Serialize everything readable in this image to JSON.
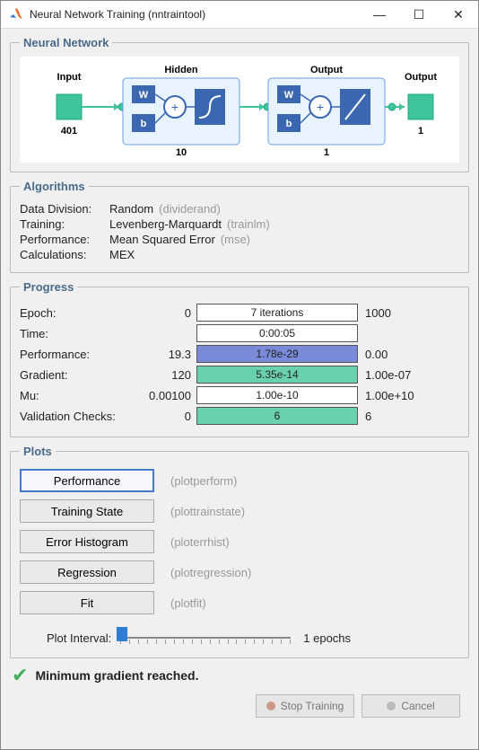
{
  "window": {
    "title": "Neural Network Training (nntraintool)"
  },
  "sections": {
    "network": "Neural Network",
    "algorithms": "Algorithms",
    "progress": "Progress",
    "plots": "Plots"
  },
  "diagram": {
    "input_label": "Input",
    "input_size": "401",
    "hidden_label": "Hidden",
    "hidden_size": "10",
    "output_label": "Output",
    "output_size": "1",
    "final_label": "Output",
    "final_size": "1",
    "w": "W",
    "b": "b",
    "plus": "+",
    "colors": {
      "inputBox": "#3fc49b",
      "layerFill": "#e7f3ff",
      "layerBorder": "#6d9fd8",
      "block": "#3b66b0",
      "wire": "#3fc49b"
    }
  },
  "algorithms": {
    "rows": [
      {
        "label": "Data Division:",
        "value": "Random",
        "hint": "(dividerand)"
      },
      {
        "label": "Training:",
        "value": "Levenberg-Marquardt",
        "hint": "(trainlm)"
      },
      {
        "label": "Performance:",
        "value": "Mean Squared Error",
        "hint": "(mse)"
      },
      {
        "label": "Calculations:",
        "value": "MEX",
        "hint": ""
      }
    ]
  },
  "progress": {
    "rows": [
      {
        "label": "Epoch:",
        "left": "0",
        "text": "7 iterations",
        "right": "1000",
        "fill": 0.007,
        "color": "none"
      },
      {
        "label": "Time:",
        "left": "",
        "text": "0:00:05",
        "right": "",
        "fill": 0,
        "color": "none"
      },
      {
        "label": "Performance:",
        "left": "19.3",
        "text": "1.78e-29",
        "right": "0.00",
        "fill": 1,
        "color": "blue"
      },
      {
        "label": "Gradient:",
        "left": "120",
        "text": "5.35e-14",
        "right": "1.00e-07",
        "fill": 1,
        "color": "green"
      },
      {
        "label": "Mu:",
        "left": "0.00100",
        "text": "1.00e-10",
        "right": "1.00e+10",
        "fill": 0,
        "color": "none"
      },
      {
        "label": "Validation Checks:",
        "left": "0",
        "text": "6",
        "right": "6",
        "fill": 1,
        "color": "green"
      }
    ]
  },
  "plots": {
    "buttons": [
      {
        "label": "Performance",
        "hint": "(plotperform)",
        "selected": true
      },
      {
        "label": "Training State",
        "hint": "(plottrainstate)",
        "selected": false
      },
      {
        "label": "Error Histogram",
        "hint": "(ploterrhist)",
        "selected": false
      },
      {
        "label": "Regression",
        "hint": "(plotregression)",
        "selected": false
      },
      {
        "label": "Fit",
        "hint": "(plotfit)",
        "selected": false
      }
    ],
    "interval_label": "Plot Interval:",
    "interval_value": "1 epochs"
  },
  "status": {
    "message": "Minimum gradient reached."
  },
  "footer": {
    "stop": "Stop Training",
    "cancel": "Cancel"
  }
}
